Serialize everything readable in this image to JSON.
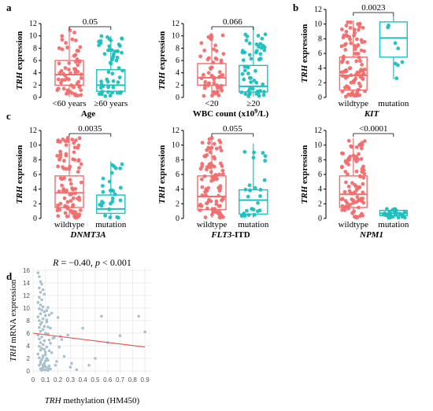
{
  "colors": {
    "group_a": "#f26d6d",
    "group_b": "#1dbfbf",
    "scatter_point": "#a8c1cc",
    "fit_line": "#d9534f"
  },
  "panel_letters": [
    "a",
    "b",
    "c",
    "d"
  ],
  "chart_data": [
    {
      "panel": "a",
      "type": "box",
      "ylabel_italic": "TRH",
      "ylabel_rest": " expression",
      "xlabel": "Age",
      "xlabel_style": "bold",
      "categories": [
        "<60 years",
        "≥60 years"
      ],
      "ylim": [
        0,
        12
      ],
      "yticks": [
        0,
        2,
        4,
        6,
        8,
        10,
        12
      ],
      "pvalue": "0.05",
      "boxes": [
        {
          "q1": 2.0,
          "median": 3.7,
          "q3": 6.0,
          "low": 0.1,
          "high": 11.5,
          "n": 60,
          "spread": [
            0.1,
            11.3
          ]
        },
        {
          "q1": 1.0,
          "median": 2.0,
          "q3": 4.5,
          "low": 0.1,
          "high": 10.0,
          "n": 55,
          "spread": [
            0.1,
            10.0
          ]
        }
      ]
    },
    {
      "panel": "a2",
      "type": "box",
      "ylabel_italic": "TRH",
      "ylabel_rest": " expression",
      "xlabel": "WBC count (x10",
      "xlabel_sup": "9",
      "xlabel_tail": "/L)",
      "xlabel_style": "bold",
      "categories": [
        "<20",
        "≥20"
      ],
      "ylim": [
        0,
        12
      ],
      "yticks": [
        0,
        2,
        4,
        6,
        8,
        10,
        12
      ],
      "pvalue": "0.066",
      "boxes": [
        {
          "q1": 2.0,
          "median": 3.2,
          "q3": 5.5,
          "low": 0.1,
          "high": 10.5,
          "n": 55,
          "spread": [
            0.2,
            10.3
          ]
        },
        {
          "q1": 0.9,
          "median": 1.8,
          "q3": 5.2,
          "low": 0.1,
          "high": 11.5,
          "n": 55,
          "spread": [
            0.1,
            11.3
          ]
        }
      ]
    },
    {
      "panel": "b",
      "type": "box",
      "ylabel_italic": "TRH",
      "ylabel_rest": " expression",
      "xlabel": "KIT",
      "xlabel_style": "bolditalic",
      "categories": [
        "wildtype",
        "mutation"
      ],
      "ylim": [
        0,
        12
      ],
      "yticks": [
        0,
        2,
        4,
        6,
        8,
        10,
        12
      ],
      "pvalue": "0.0023",
      "boxes": [
        {
          "q1": 1.0,
          "median": 3.0,
          "q3": 5.5,
          "low": 0.1,
          "high": 10.5,
          "n": 100,
          "spread": [
            0.1,
            10.3
          ]
        },
        {
          "q1": 5.5,
          "median": 8.1,
          "q3": 10.3,
          "low": 2.5,
          "high": 11.2,
          "n": 8,
          "spread": [
            2.6,
            11.0
          ]
        }
      ]
    },
    {
      "panel": "c1",
      "type": "box",
      "ylabel_italic": "TRH",
      "ylabel_rest": " expression",
      "xlabel": "DNMT3A",
      "xlabel_style": "bolditalic",
      "categories": [
        "wildtype",
        "mutation"
      ],
      "ylim": [
        0,
        12
      ],
      "yticks": [
        0,
        2,
        4,
        6,
        8,
        10,
        12
      ],
      "pvalue": "0.0035",
      "boxes": [
        {
          "q1": 1.5,
          "median": 3.5,
          "q3": 5.8,
          "low": 0.1,
          "high": 11.0,
          "n": 90,
          "spread": [
            0.1,
            11.0
          ]
        },
        {
          "q1": 0.7,
          "median": 1.3,
          "q3": 3.2,
          "low": 0.1,
          "high": 7.8,
          "n": 28,
          "spread": [
            0.1,
            7.8
          ]
        }
      ]
    },
    {
      "panel": "c2",
      "type": "box",
      "ylabel_italic": "TRH",
      "ylabel_rest": " expression",
      "xlabel": "FLT3",
      "xlabel_tail": "-ITD",
      "xlabel_style": "bolditalic",
      "categories": [
        "wildtype",
        "mutation"
      ],
      "ylim": [
        0,
        12
      ],
      "yticks": [
        0,
        2,
        4,
        6,
        8,
        10,
        12
      ],
      "pvalue": "0.055",
      "boxes": [
        {
          "q1": 1.2,
          "median": 3.0,
          "q3": 5.8,
          "low": 0.1,
          "high": 11.0,
          "n": 90,
          "spread": [
            0.1,
            11.0
          ]
        },
        {
          "q1": 0.6,
          "median": 2.5,
          "q3": 3.9,
          "low": 0.1,
          "high": 10.2,
          "n": 28,
          "spread": [
            0.1,
            10.2
          ]
        }
      ]
    },
    {
      "panel": "c3",
      "type": "box",
      "ylabel_italic": "TRH",
      "ylabel_rest": " expression",
      "xlabel": "NPM1",
      "xlabel_style": "bolditalic",
      "categories": [
        "wildtype",
        "mutation"
      ],
      "ylim": [
        0,
        12
      ],
      "yticks": [
        0,
        2,
        4,
        6,
        8,
        10,
        12
      ],
      "pvalue": "<0.0001",
      "boxes": [
        {
          "q1": 1.5,
          "median": 3.3,
          "q3": 5.8,
          "low": 0.1,
          "high": 11.0,
          "n": 90,
          "spread": [
            0.1,
            11.0
          ]
        },
        {
          "q1": 0.4,
          "median": 0.7,
          "q3": 1.1,
          "low": 0.1,
          "high": 1.5,
          "n": 30,
          "spread": [
            0.1,
            1.4
          ]
        }
      ]
    },
    {
      "panel": "d",
      "type": "scatter",
      "title_R": "R",
      "title_eq": " = −0.40, ",
      "title_p": "p",
      "title_tail": " < 0.001",
      "ylabel_italic": "TRH",
      "ylabel_rest": "  mRNA expression",
      "xlabel_italic": "TRH",
      "xlabel_rest": " methylation (HM450)",
      "xlim": [
        0,
        0.95
      ],
      "ylim": [
        -0.5,
        16.5
      ],
      "xticks": [
        0,
        0.1,
        0.2,
        0.3,
        0.4,
        0.5,
        0.6,
        0.7,
        0.8,
        0.9
      ],
      "yticks": [
        0,
        2,
        4,
        6,
        8,
        10,
        12,
        14,
        16
      ],
      "grid": true,
      "fit": {
        "x": [
          0,
          0.9
        ],
        "y": [
          6.0,
          3.8
        ]
      },
      "points": [
        [
          0.04,
          15.6
        ],
        [
          0.05,
          15.0
        ],
        [
          0.06,
          14.2
        ],
        [
          0.07,
          13.8
        ],
        [
          0.05,
          13.2
        ],
        [
          0.08,
          12.9
        ],
        [
          0.06,
          12.5
        ],
        [
          0.09,
          12.2
        ],
        [
          0.05,
          11.7
        ],
        [
          0.07,
          11.3
        ],
        [
          0.04,
          10.9
        ],
        [
          0.06,
          10.5
        ],
        [
          0.08,
          10.2
        ],
        [
          0.05,
          9.9
        ],
        [
          0.07,
          9.7
        ],
        [
          0.09,
          9.4
        ],
        [
          0.06,
          9.1
        ],
        [
          0.1,
          8.8
        ],
        [
          0.04,
          8.6
        ],
        [
          0.08,
          8.3
        ],
        [
          0.05,
          8.0
        ],
        [
          0.07,
          7.7
        ],
        [
          0.06,
          7.4
        ],
        [
          0.09,
          7.1
        ],
        [
          0.05,
          6.9
        ],
        [
          0.08,
          6.6
        ],
        [
          0.06,
          6.3
        ],
        [
          0.1,
          6.0
        ],
        [
          0.04,
          5.7
        ],
        [
          0.07,
          5.4
        ],
        [
          0.05,
          5.1
        ],
        [
          0.09,
          4.8
        ],
        [
          0.06,
          4.5
        ],
        [
          0.08,
          4.2
        ],
        [
          0.05,
          3.9
        ],
        [
          0.07,
          3.6
        ],
        [
          0.06,
          3.3
        ],
        [
          0.1,
          3.0
        ],
        [
          0.04,
          2.7
        ],
        [
          0.08,
          2.4
        ],
        [
          0.05,
          2.1
        ],
        [
          0.07,
          1.8
        ],
        [
          0.06,
          1.5
        ],
        [
          0.09,
          1.2
        ],
        [
          0.05,
          0.9
        ],
        [
          0.08,
          0.6
        ],
        [
          0.06,
          0.3
        ],
        [
          0.07,
          0.1
        ],
        [
          0.1,
          0.2
        ],
        [
          0.12,
          0.5
        ],
        [
          0.11,
          9.6
        ],
        [
          0.12,
          10.1
        ],
        [
          0.13,
          8.9
        ],
        [
          0.11,
          7.8
        ],
        [
          0.14,
          6.8
        ],
        [
          0.12,
          5.9
        ],
        [
          0.13,
          4.9
        ],
        [
          0.11,
          3.8
        ],
        [
          0.15,
          2.9
        ],
        [
          0.12,
          1.7
        ],
        [
          0.13,
          0.8
        ],
        [
          0.14,
          0.3
        ],
        [
          0.15,
          9.2
        ],
        [
          0.11,
          8.1
        ],
        [
          0.12,
          7.0
        ],
        [
          0.14,
          4.4
        ],
        [
          0.13,
          3.2
        ],
        [
          0.11,
          2.0
        ],
        [
          0.16,
          5.2
        ],
        [
          0.12,
          0.1
        ],
        [
          0.09,
          1.0
        ],
        [
          0.1,
          1.6
        ],
        [
          0.08,
          2.2
        ],
        [
          0.1,
          2.6
        ],
        [
          0.09,
          3.4
        ],
        [
          0.07,
          0.4
        ],
        [
          0.08,
          0.9
        ],
        [
          0.06,
          1.2
        ],
        [
          0.1,
          0.7
        ],
        [
          0.09,
          0.2
        ],
        [
          0.22,
          5.5
        ],
        [
          0.23,
          5.0
        ],
        [
          0.3,
          0.6
        ],
        [
          0.25,
          2.3
        ],
        [
          0.28,
          5.7
        ],
        [
          0.31,
          1.2
        ],
        [
          0.4,
          6.8
        ],
        [
          0.2,
          8.5
        ],
        [
          0.18,
          0.9
        ],
        [
          0.21,
          3.8
        ],
        [
          0.55,
          8.7
        ],
        [
          0.85,
          8.7
        ],
        [
          0.9,
          6.2
        ],
        [
          0.7,
          5.6
        ],
        [
          0.6,
          4.5
        ],
        [
          0.45,
          0.9
        ],
        [
          0.35,
          0.2
        ],
        [
          0.5,
          2.0
        ],
        [
          0.17,
          5.3
        ],
        [
          0.19,
          1.5
        ]
      ]
    }
  ]
}
